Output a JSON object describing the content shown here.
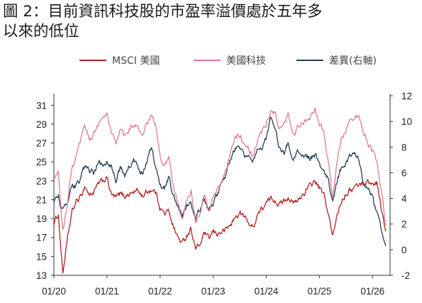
{
  "title_lines": [
    "圖 2：目前資訊科技股的市盈率溢價處於五年多",
    "以來的低位"
  ],
  "chart_data": {
    "type": "line",
    "title": "圖 2：目前資訊科技股的市盈率溢價處於五年多以來的低位",
    "xlabel": "",
    "ylabel": "",
    "x_ticks": [
      "01/20",
      "01/21",
      "01/22",
      "01/23",
      "01/24",
      "01/25",
      "01/26"
    ],
    "x_range": [
      "2020-01",
      "2026-04"
    ],
    "ylim": [
      13,
      32
    ],
    "y_ticks": [
      13,
      15,
      17,
      19,
      21,
      23,
      25,
      27,
      29,
      31
    ],
    "y2lim": [
      -2,
      12
    ],
    "y2_ticks": [
      -2,
      0,
      2,
      4,
      6,
      8,
      10,
      12
    ],
    "grid": false,
    "legend_position": "top",
    "series": [
      {
        "name": "MSCI 美國",
        "axis": "left",
        "color": "#b22222",
        "dates": [
          "2020-01",
          "2020-02",
          "2020-03",
          "2020-04",
          "2020-05",
          "2020-06",
          "2020-07",
          "2020-08",
          "2020-09",
          "2020-10",
          "2020-11",
          "2020-12",
          "2021-01",
          "2021-02",
          "2021-03",
          "2021-04",
          "2021-05",
          "2021-06",
          "2021-07",
          "2021-08",
          "2021-09",
          "2021-10",
          "2021-11",
          "2021-12",
          "2022-01",
          "2022-02",
          "2022-03",
          "2022-04",
          "2022-05",
          "2022-06",
          "2022-07",
          "2022-08",
          "2022-09",
          "2022-10",
          "2022-11",
          "2022-12",
          "2023-01",
          "2023-02",
          "2023-03",
          "2023-04",
          "2023-05",
          "2023-06",
          "2023-07",
          "2023-08",
          "2023-09",
          "2023-10",
          "2023-11",
          "2023-12",
          "2024-01",
          "2024-02",
          "2024-03",
          "2024-04",
          "2024-05",
          "2024-06",
          "2024-07",
          "2024-08",
          "2024-09",
          "2024-10",
          "2024-11",
          "2024-12",
          "2025-01",
          "2025-02",
          "2025-03",
          "2025-04",
          "2025-05",
          "2025-06",
          "2025-07",
          "2025-08",
          "2025-09",
          "2025-10",
          "2025-11",
          "2025-12",
          "2026-01",
          "2026-02",
          "2026-03",
          "2026-04"
        ],
        "values": [
          18.5,
          19.5,
          13.2,
          16.5,
          19.5,
          20.8,
          21.2,
          22.5,
          21.5,
          21.8,
          22.6,
          23.0,
          23.3,
          21.5,
          21.2,
          21.6,
          21.4,
          21.6,
          21.8,
          22.0,
          21.4,
          21.8,
          22.1,
          21.8,
          20.2,
          19.5,
          19.8,
          18.2,
          17.0,
          16.4,
          17.2,
          18.0,
          15.8,
          16.2,
          17.5,
          16.8,
          17.6,
          17.4,
          17.6,
          17.9,
          18.4,
          19.1,
          19.6,
          19.2,
          18.6,
          18.0,
          19.5,
          20.0,
          20.6,
          21.1,
          21.0,
          20.5,
          21.0,
          21.3,
          20.6,
          20.8,
          21.4,
          22.0,
          22.5,
          23.0,
          22.2,
          21.5,
          19.5,
          17.0,
          19.5,
          21.0,
          21.7,
          22.0,
          22.4,
          22.6,
          22.8,
          22.9,
          22.6,
          22.9,
          20.0,
          17.5
        ]
      },
      {
        "name": "美國科技",
        "axis": "left",
        "color": "#e07b91",
        "dates": [
          "2020-01",
          "2020-02",
          "2020-03",
          "2020-04",
          "2020-05",
          "2020-06",
          "2020-07",
          "2020-08",
          "2020-09",
          "2020-10",
          "2020-11",
          "2020-12",
          "2021-01",
          "2021-02",
          "2021-03",
          "2021-04",
          "2021-05",
          "2021-06",
          "2021-07",
          "2021-08",
          "2021-09",
          "2021-10",
          "2021-11",
          "2021-12",
          "2022-01",
          "2022-02",
          "2022-03",
          "2022-04",
          "2022-05",
          "2022-06",
          "2022-07",
          "2022-08",
          "2022-09",
          "2022-10",
          "2022-11",
          "2022-12",
          "2023-01",
          "2023-02",
          "2023-03",
          "2023-04",
          "2023-05",
          "2023-06",
          "2023-07",
          "2023-08",
          "2023-09",
          "2023-10",
          "2023-11",
          "2023-12",
          "2024-01",
          "2024-02",
          "2024-03",
          "2024-04",
          "2024-05",
          "2024-06",
          "2024-07",
          "2024-08",
          "2024-09",
          "2024-10",
          "2024-11",
          "2024-12",
          "2025-01",
          "2025-02",
          "2025-03",
          "2025-04",
          "2025-05",
          "2025-06",
          "2025-07",
          "2025-08",
          "2025-09",
          "2025-10",
          "2025-11",
          "2025-12",
          "2026-01",
          "2026-02",
          "2026-03",
          "2026-04"
        ],
        "values": [
          23.0,
          24.0,
          17.5,
          20.5,
          24.0,
          25.5,
          27.0,
          28.8,
          27.5,
          28.0,
          29.0,
          29.5,
          30.0,
          28.0,
          27.0,
          28.5,
          27.5,
          28.5,
          29.0,
          28.5,
          27.5,
          29.0,
          30.0,
          28.8,
          25.5,
          24.5,
          25.8,
          22.5,
          20.5,
          18.8,
          21.0,
          22.0,
          18.5,
          19.5,
          21.5,
          19.8,
          21.5,
          22.0,
          23.0,
          24.0,
          26.0,
          27.5,
          28.0,
          27.0,
          26.5,
          25.5,
          27.5,
          28.0,
          29.0,
          30.5,
          30.0,
          28.5,
          29.0,
          30.0,
          28.0,
          28.5,
          29.0,
          29.5,
          29.8,
          30.5,
          29.0,
          28.0,
          25.0,
          21.0,
          25.0,
          27.5,
          28.5,
          29.5,
          30.0,
          29.5,
          28.0,
          27.0,
          26.0,
          25.0,
          22.0,
          18.0
        ]
      },
      {
        "name": "差異(右軸)",
        "axis": "right",
        "color": "#243f54",
        "dates": [
          "2020-01",
          "2020-02",
          "2020-03",
          "2020-04",
          "2020-05",
          "2020-06",
          "2020-07",
          "2020-08",
          "2020-09",
          "2020-10",
          "2020-11",
          "2020-12",
          "2021-01",
          "2021-02",
          "2021-03",
          "2021-04",
          "2021-05",
          "2021-06",
          "2021-07",
          "2021-08",
          "2021-09",
          "2021-10",
          "2021-11",
          "2021-12",
          "2022-01",
          "2022-02",
          "2022-03",
          "2022-04",
          "2022-05",
          "2022-06",
          "2022-07",
          "2022-08",
          "2022-09",
          "2022-10",
          "2022-11",
          "2022-12",
          "2023-01",
          "2023-02",
          "2023-03",
          "2023-04",
          "2023-05",
          "2023-06",
          "2023-07",
          "2023-08",
          "2023-09",
          "2023-10",
          "2023-11",
          "2023-12",
          "2024-01",
          "2024-02",
          "2024-03",
          "2024-04",
          "2024-05",
          "2024-06",
          "2024-07",
          "2024-08",
          "2024-09",
          "2024-10",
          "2024-11",
          "2024-12",
          "2025-01",
          "2025-02",
          "2025-03",
          "2025-04",
          "2025-05",
          "2025-06",
          "2025-07",
          "2025-08",
          "2025-09",
          "2025-10",
          "2025-11",
          "2025-12",
          "2026-01",
          "2026-02",
          "2026-03",
          "2026-04"
        ],
        "values": [
          3.8,
          4.2,
          3.0,
          3.5,
          4.8,
          5.0,
          5.5,
          6.5,
          6.2,
          6.0,
          6.8,
          6.6,
          6.9,
          6.5,
          5.3,
          6.5,
          5.8,
          6.5,
          7.0,
          6.3,
          6.0,
          7.0,
          8.0,
          6.5,
          5.1,
          4.8,
          5.8,
          4.2,
          3.3,
          2.5,
          3.5,
          3.8,
          2.6,
          3.1,
          4.0,
          2.9,
          3.6,
          4.3,
          5.2,
          6.0,
          7.3,
          8.0,
          8.0,
          7.2,
          7.6,
          7.0,
          7.8,
          7.8,
          8.6,
          10.5,
          9.5,
          7.8,
          7.6,
          8.4,
          7.2,
          7.5,
          7.4,
          7.3,
          7.1,
          7.4,
          6.6,
          6.2,
          5.4,
          3.8,
          5.4,
          6.4,
          6.6,
          7.4,
          7.4,
          7.0,
          5.2,
          4.6,
          4.0,
          2.7,
          1.6,
          0.2
        ]
      }
    ]
  }
}
